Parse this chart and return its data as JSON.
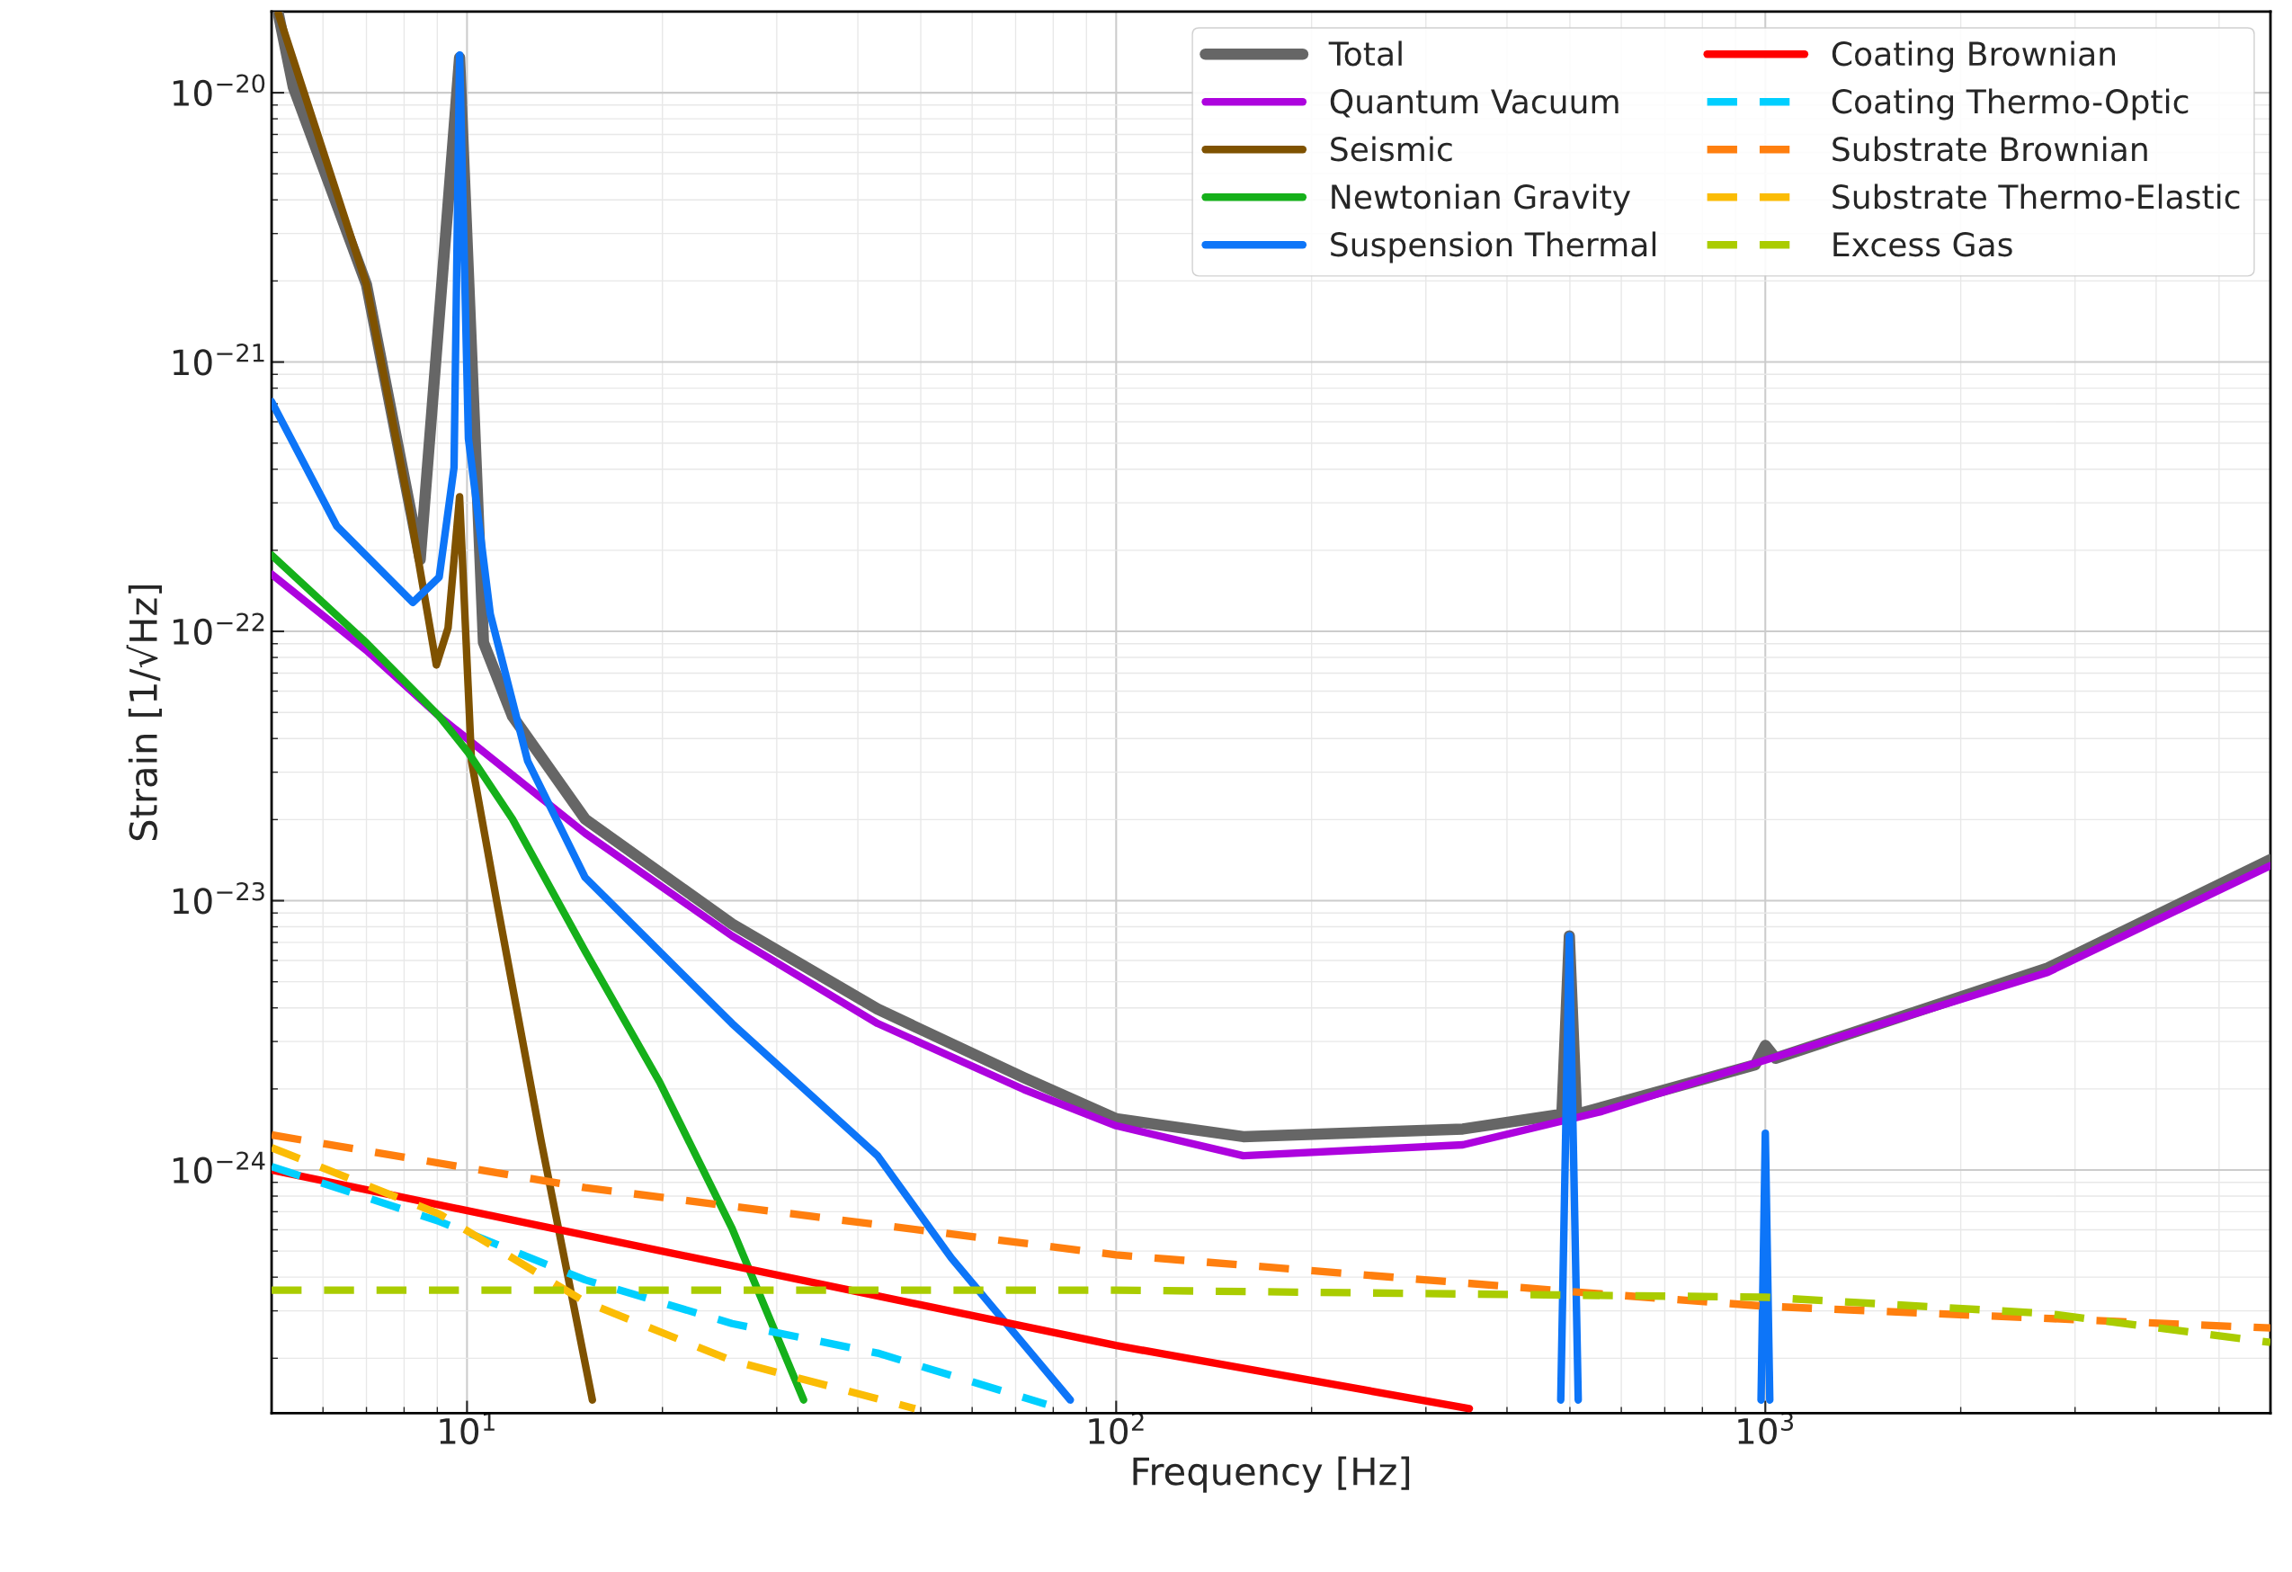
{
  "chart_data": {
    "type": "line",
    "xlabel": "Frequency [Hz]",
    "ylabel": "Strain [1/√Hz]",
    "log": "xy",
    "grid": true,
    "legend": "top right",
    "xlim": [
      5,
      6000
    ],
    "ylim": [
      1.25e-25,
      2e-20
    ],
    "xticks": [
      {
        "value": 10,
        "label": "10$^{1}$"
      },
      {
        "value": 100,
        "label": "10$^{2}$"
      },
      {
        "value": 1000,
        "label": "10$^{3}$"
      }
    ],
    "yticks": [
      {
        "value": 1e-24,
        "label": "10$^{−24}$"
      },
      {
        "value": 1e-23,
        "label": "10$^{−23}$"
      },
      {
        "value": 1e-22,
        "label": "10$^{−22}$"
      },
      {
        "value": 1e-21,
        "label": "10$^{−21}$"
      },
      {
        "value": 1e-20,
        "label": "10$^{−20}$"
      }
    ],
    "series": [
      {
        "name": "Total",
        "color": "#666666",
        "line_style": "solid",
        "x": [
          5.12,
          5.4,
          7.0,
          8.47,
          9.74,
          10.6,
          11.75,
          15.2,
          25.6,
          42.9,
          72.1,
          100,
          157,
          342,
          486,
          499,
          512,
          965,
          1000,
          1037,
          2722,
          6000
        ],
        "values": [
          1.97e-20,
          1.05e-20,
          1.94e-21,
          1.85e-22,
          1.35e-20,
          9.1e-23,
          4.84e-23,
          2.01e-23,
          8.2e-24,
          3.96e-24,
          2.2e-24,
          1.55e-24,
          1.33e-24,
          1.42e-24,
          1.61e-24,
          7.4e-24,
          1.61e-24,
          2.46e-24,
          2.9e-24,
          2.6e-24,
          5.62e-24,
          1.42e-23
        ]
      },
      {
        "name": "Quantum Vacuum",
        "color": "#ad03de",
        "line_style": "solid",
        "x": [
          5,
          7,
          9.06,
          15.2,
          25.6,
          42.9,
          72.1,
          100,
          157,
          342,
          560,
          1000,
          2722,
          6000
        ],
        "values": [
          1.63e-22,
          8.5e-23,
          4.84e-23,
          1.78e-23,
          7.4e-24,
          3.5e-24,
          1.99e-24,
          1.46e-24,
          1.13e-24,
          1.24e-24,
          1.65e-24,
          2.56e-24,
          5.42e-24,
          1.35e-23
        ]
      },
      {
        "name": "Seismic",
        "color": "#7f5200",
        "line_style": "solid",
        "x": [
          5.12,
          7.0,
          8.17,
          8.97,
          9.35,
          9.74,
          10.16,
          11.15,
          13.0,
          15.6
        ],
        "values": [
          1.97e-20,
          1.94e-21,
          2.79e-22,
          7.5e-23,
          1.03e-22,
          3.16e-22,
          3.3e-23,
          9.5e-24,
          1.29e-24,
          1.4e-25
        ]
      },
      {
        "name": "Newtonian Gravity",
        "color": "#15b01a",
        "line_style": "solid",
        "x": [
          5,
          7,
          9.06,
          10.05,
          11.75,
          15.2,
          19.8,
          25.6,
          33.0
        ],
        "values": [
          1.92e-22,
          9.06e-23,
          4.84e-23,
          3.54e-23,
          2.01e-23,
          6.5e-24,
          2.12e-24,
          6.07e-25,
          1.4e-25
        ]
      },
      {
        "name": "Suspension Thermal",
        "color": "#0d75f8",
        "line_style": "solid",
        "x": [
          5,
          6.3,
          8.25,
          9.06,
          9.55,
          9.74,
          10.05,
          10.86,
          12.4,
          15.2,
          25.6,
          42.9,
          55.7,
          85,
          200,
          484,
          499,
          515,
          700,
          985,
          1000,
          1016
        ],
        "values": [
          7.13e-22,
          2.46e-22,
          1.28e-22,
          1.59e-22,
          4.06e-22,
          1.38e-20,
          5.2e-22,
          1.16e-22,
          3.3e-23,
          1.22e-23,
          3.5e-24,
          1.13e-24,
          4.72e-25,
          1.4e-25,
          null,
          1.4e-25,
          7.4e-24,
          1.4e-25,
          null,
          1.4e-25,
          1.37e-24,
          1.4e-25
        ]
      },
      {
        "name": "Coating Brownian",
        "color": "#ff0000",
        "line_style": "solid",
        "x": [
          5,
          100,
          350
        ],
        "values": [
          1e-24,
          2.23e-25,
          1.3e-25
        ]
      },
      {
        "name": "Coating Thermo-Optic",
        "color": "#00cfff",
        "line_style": "dashed",
        "x": [
          5,
          9.06,
          15.2,
          25.6,
          42.9,
          78
        ],
        "values": [
          1.03e-24,
          6.45e-25,
          3.91e-25,
          2.69e-25,
          2.09e-25,
          1.35e-25
        ]
      },
      {
        "name": "Substrate Brownian",
        "color": "#ff7f0e",
        "line_style": "dashed",
        "x": [
          5,
          15.2,
          100,
          499,
          1000,
          6000
        ],
        "values": [
          1.35e-24,
          8.6e-25,
          4.84e-25,
          3.54e-25,
          3.12e-25,
          2.59e-25
        ]
      },
      {
        "name": "Substrate Thermo-Elastic",
        "color": "#fbbc05",
        "line_style": "dashed",
        "x": [
          5,
          9.06,
          15.2,
          25.6,
          49
        ],
        "values": [
          1.21e-24,
          6.87e-25,
          3.24e-25,
          1.96e-25,
          1.3e-25
        ]
      },
      {
        "name": "Excess Gas",
        "color": "#aacc00",
        "line_style": "dashed",
        "x": [
          5,
          100,
          1000,
          2722,
          6000
        ],
        "values": [
          3.58e-25,
          3.58e-25,
          3.37e-25,
          2.93e-25,
          2.29e-25
        ]
      }
    ]
  }
}
